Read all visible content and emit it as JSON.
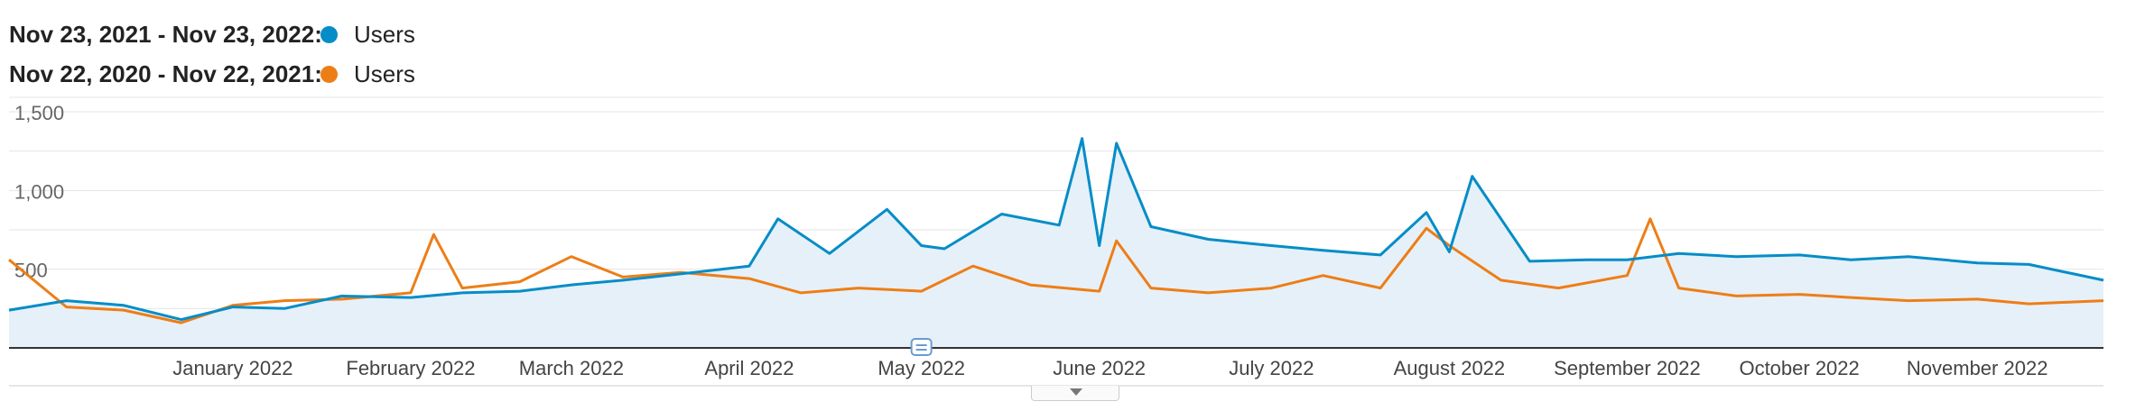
{
  "legend": {
    "current_range": "Nov 23, 2021 - Nov 23, 2022:",
    "current_metric": "Users",
    "previous_range": "Nov 22, 2020 - Nov 22, 2021:",
    "previous_metric": "Users"
  },
  "colors": {
    "current": "#058dc7",
    "previous": "#ed7e17",
    "area": "#e6f0f8",
    "grid": "#e5e5e5"
  },
  "chart_data": {
    "type": "line",
    "ylim": [
      0,
      1500
    ],
    "yticks": [
      500,
      1000,
      1500
    ],
    "ytick_labels": [
      "500",
      "1,000",
      "1,500"
    ],
    "xlim": [
      "2021-11-23",
      "2022-11-23"
    ],
    "xticks": [
      {
        "label": "January 2022",
        "date": "2022-01-01"
      },
      {
        "label": "February 2022",
        "date": "2022-02-01"
      },
      {
        "label": "March 2022",
        "date": "2022-03-01"
      },
      {
        "label": "April 2022",
        "date": "2022-04-01"
      },
      {
        "label": "May 2022",
        "date": "2022-05-01"
      },
      {
        "label": "June 2022",
        "date": "2022-06-01"
      },
      {
        "label": "July 2022",
        "date": "2022-07-01"
      },
      {
        "label": "August 2022",
        "date": "2022-08-01"
      },
      {
        "label": "September 2022",
        "date": "2022-09-01"
      },
      {
        "label": "October 2022",
        "date": "2022-10-01"
      },
      {
        "label": "November 2022",
        "date": "2022-11-01"
      }
    ],
    "series": [
      {
        "name": "Users",
        "x": [
          "2021-11-23",
          "2021-12-03",
          "2021-12-13",
          "2021-12-23",
          "2022-01-01",
          "2022-01-10",
          "2022-01-20",
          "2022-02-01",
          "2022-02-10",
          "2022-02-20",
          "2022-03-01",
          "2022-03-10",
          "2022-03-20",
          "2022-04-01",
          "2022-04-06",
          "2022-04-15",
          "2022-04-25",
          "2022-05-01",
          "2022-05-05",
          "2022-05-15",
          "2022-05-25",
          "2022-05-29",
          "2022-06-01",
          "2022-06-04",
          "2022-06-10",
          "2022-06-20",
          "2022-07-01",
          "2022-07-10",
          "2022-07-20",
          "2022-07-28",
          "2022-08-01",
          "2022-08-05",
          "2022-08-15",
          "2022-08-25",
          "2022-09-01",
          "2022-09-10",
          "2022-09-20",
          "2022-10-01",
          "2022-10-10",
          "2022-10-20",
          "2022-11-01",
          "2022-11-10",
          "2022-11-23"
        ],
        "y": [
          240,
          300,
          270,
          180,
          260,
          250,
          330,
          320,
          350,
          360,
          400,
          430,
          470,
          520,
          820,
          600,
          880,
          650,
          630,
          850,
          780,
          1330,
          650,
          1300,
          770,
          690,
          650,
          620,
          590,
          860,
          610,
          1090,
          550,
          560,
          560,
          600,
          580,
          590,
          560,
          580,
          540,
          530,
          430
        ]
      },
      {
        "name": "Users",
        "x": [
          "2021-11-23",
          "2021-12-03",
          "2021-12-13",
          "2021-12-23",
          "2022-01-01",
          "2022-01-10",
          "2022-01-20",
          "2022-02-01",
          "2022-02-05",
          "2022-02-10",
          "2022-02-20",
          "2022-03-01",
          "2022-03-10",
          "2022-03-20",
          "2022-04-01",
          "2022-04-10",
          "2022-04-20",
          "2022-05-01",
          "2022-05-10",
          "2022-05-20",
          "2022-06-01",
          "2022-06-04",
          "2022-06-10",
          "2022-06-20",
          "2022-07-01",
          "2022-07-10",
          "2022-07-20",
          "2022-07-28",
          "2022-08-01",
          "2022-08-10",
          "2022-08-20",
          "2022-09-01",
          "2022-09-05",
          "2022-09-10",
          "2022-09-20",
          "2022-10-01",
          "2022-10-10",
          "2022-10-20",
          "2022-11-01",
          "2022-11-10",
          "2022-11-23"
        ],
        "y": [
          560,
          260,
          240,
          160,
          270,
          300,
          310,
          350,
          720,
          380,
          420,
          580,
          450,
          480,
          440,
          350,
          380,
          360,
          520,
          400,
          360,
          680,
          380,
          350,
          380,
          460,
          380,
          760,
          650,
          430,
          380,
          460,
          820,
          380,
          330,
          340,
          320,
          300,
          310,
          280,
          300
        ]
      }
    ]
  }
}
